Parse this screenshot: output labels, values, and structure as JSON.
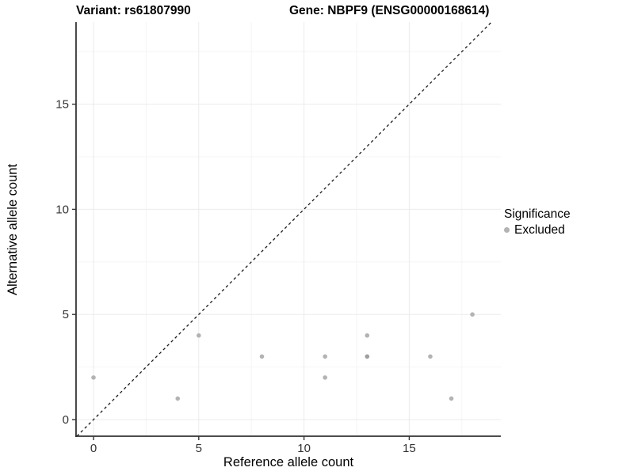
{
  "header": {
    "variant_title": "Variant: rs61807990",
    "gene_title": "Gene: NBPF9 (ENSG00000168614)"
  },
  "chart_data": {
    "type": "scatter",
    "xlabel": "Reference allele count",
    "ylabel": "Alternative allele count",
    "x_ticks": [
      0,
      5,
      10,
      15
    ],
    "y_ticks": [
      0,
      5,
      10,
      15
    ],
    "x_minor": [
      2.5,
      7.5,
      12.5,
      17.5
    ],
    "y_minor": [
      2.5,
      7.5,
      12.5,
      17.5
    ],
    "xlim": [
      -0.83,
      19.35
    ],
    "ylim": [
      -0.79,
      18.9
    ],
    "grid": true,
    "legend_position": "right",
    "identity_line": {
      "style": "dashed",
      "from": -0.79,
      "to": 18.9
    },
    "series": [
      {
        "name": "Excluded"
      }
    ],
    "points": [
      {
        "x": 0,
        "y": 2,
        "count": 1
      },
      {
        "x": 4,
        "y": 1,
        "count": 1
      },
      {
        "x": 5,
        "y": 4,
        "count": 1
      },
      {
        "x": 8,
        "y": 3,
        "count": 1
      },
      {
        "x": 11,
        "y": 2,
        "count": 1
      },
      {
        "x": 11,
        "y": 3,
        "count": 1
      },
      {
        "x": 13,
        "y": 3,
        "count": 2
      },
      {
        "x": 13,
        "y": 4,
        "count": 1
      },
      {
        "x": 16,
        "y": 3,
        "count": 1
      },
      {
        "x": 17,
        "y": 1,
        "count": 1
      },
      {
        "x": 18,
        "y": 5,
        "count": 1
      }
    ]
  },
  "legend": {
    "title": "Significance",
    "items": [
      {
        "label": "Excluded",
        "color": "#b3b3b3"
      }
    ]
  },
  "colors": {
    "point": "#b3b3b3",
    "point_overlap": "#9e9e9e",
    "grid_major": "#ebebeb",
    "grid_minor": "#f5f5f5",
    "axis": "#333333",
    "tick_label": "#333333",
    "identity_line": "#1a1a1a",
    "axis_title": "#000000"
  }
}
